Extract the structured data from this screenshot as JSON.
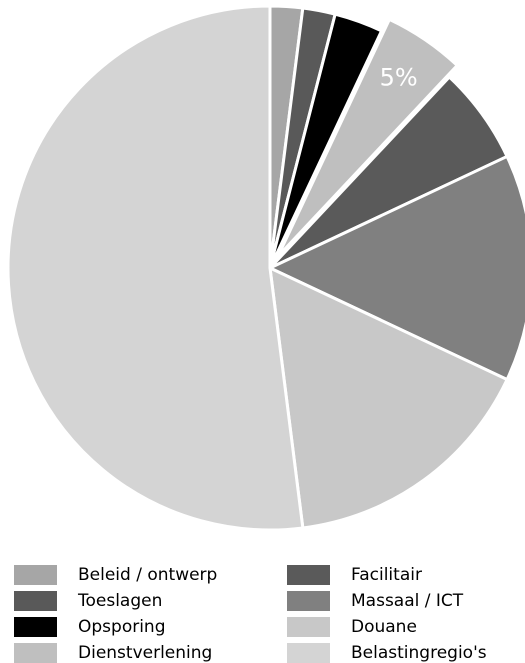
{
  "chart_data": {
    "type": "pie",
    "categories": [
      "Beleid / ontwerp",
      "Toeslagen",
      "Opsporing",
      "Dienstverlening",
      "Facilitair",
      "Massaal / ICT",
      "Douane",
      "Belastingregio's"
    ],
    "values": [
      2,
      2,
      3,
      5,
      6,
      14,
      16,
      52
    ],
    "value_labels": [
      null,
      null,
      null,
      "5%",
      null,
      null,
      null,
      null
    ],
    "colors": [
      "#a6a6a6",
      "#595959",
      "#000000",
      "#bfbfbf",
      "#5a5a5a",
      "#808080",
      "#c8c8c8",
      "#d4d4d4"
    ],
    "explode": [
      false,
      false,
      false,
      true,
      false,
      false,
      false,
      false
    ]
  }
}
